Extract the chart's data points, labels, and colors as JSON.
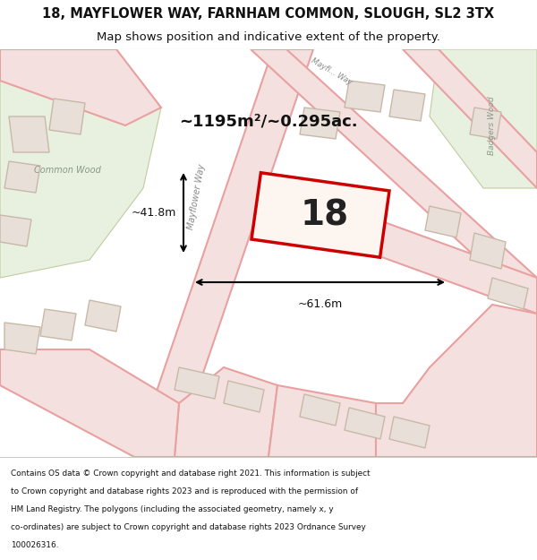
{
  "title_line1": "18, MAYFLOWER WAY, FARNHAM COMMON, SLOUGH, SL2 3TX",
  "title_line2": "Map shows position and indicative extent of the property.",
  "footer_lines": [
    "Contains OS data © Crown copyright and database right 2021. This information is subject",
    "to Crown copyright and database rights 2023 and is reproduced with the permission of",
    "HM Land Registry. The polygons (including the associated geometry, namely x, y",
    "co-ordinates) are subject to Crown copyright and database rights 2023 Ordnance Survey",
    "100026316."
  ],
  "map_bg": "#f7f0e8",
  "road_color": "#e8a0a0",
  "road_fill": "#f5e0e0",
  "building_fill": "#e8e0d8",
  "building_edge": "#c8b8a8",
  "highlight_fill": "#fdf5f0",
  "highlight_edge": "#cc0000",
  "area_text": "~1195m²/~0.295ac.",
  "width_text": "~61.6m",
  "height_text": "~41.8m",
  "label_number": "18",
  "wood_fill": "#e8f0e0",
  "wood_edge": "#c0cca0"
}
